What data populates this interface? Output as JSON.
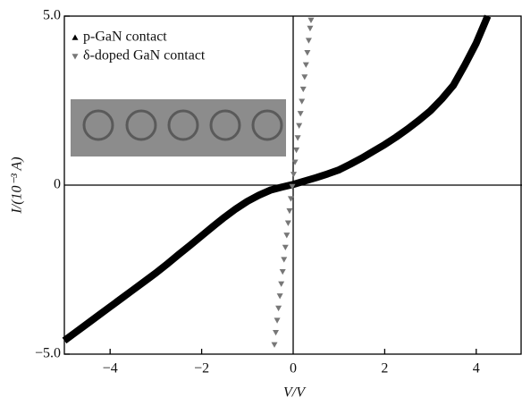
{
  "chart_data": {
    "type": "scatter",
    "xlabel": "V/V",
    "ylabel": "I/(10⁻³ A)",
    "xlim": [
      -5,
      5
    ],
    "ylim": [
      -5,
      5
    ],
    "xticks": [
      {
        "value": -4,
        "label": "−4"
      },
      {
        "value": -2,
        "label": "−2"
      },
      0,
      2,
      4
    ],
    "yticks": [
      {
        "value": -5,
        "label": "−5.0"
      },
      0,
      {
        "value": 5,
        "label": "5.0"
      }
    ],
    "legend": "upper left",
    "series": [
      {
        "name": "p-GaN contact",
        "color": "#000000",
        "marker": "triangle-up",
        "mode": "line",
        "x": [
          -5,
          -4.75,
          -4.5,
          -4.25,
          -4,
          -3.75,
          -3.5,
          -3.25,
          -3,
          -2.75,
          -2.5,
          -2.25,
          -2,
          -1.75,
          -1.5,
          -1.25,
          -1,
          -0.75,
          -0.5,
          -0.25,
          0,
          0.25,
          0.5,
          0.75,
          1,
          1.25,
          1.5,
          1.75,
          2,
          2.25,
          2.5,
          2.75,
          3,
          3.25,
          3.5,
          3.75,
          4,
          4.25
        ],
        "values": [
          -4.6,
          -4.35,
          -4.1,
          -3.85,
          -3.6,
          -3.35,
          -3.1,
          -2.85,
          -2.6,
          -2.33,
          -2.05,
          -1.78,
          -1.5,
          -1.22,
          -0.95,
          -0.7,
          -0.48,
          -0.3,
          -0.15,
          -0.06,
          0.02,
          0.12,
          0.22,
          0.33,
          0.45,
          0.62,
          0.8,
          1.0,
          1.2,
          1.42,
          1.66,
          1.92,
          2.2,
          2.55,
          2.95,
          3.55,
          4.2,
          5.0
        ]
      },
      {
        "name": "δ-doped GaN contact",
        "color": "#777777",
        "marker": "triangle-down",
        "mode": "markers",
        "x": [
          -0.41,
          -0.38,
          -0.35,
          -0.32,
          -0.29,
          -0.26,
          -0.23,
          -0.2,
          -0.17,
          -0.14,
          -0.11,
          -0.08,
          -0.05,
          -0.02,
          0.01,
          0.04,
          0.07,
          0.1,
          0.13,
          0.16,
          0.19,
          0.22,
          0.25,
          0.28,
          0.31,
          0.34,
          0.37,
          0.39
        ],
        "values": [
          -4.72,
          -4.36,
          -4.0,
          -3.64,
          -3.28,
          -2.92,
          -2.56,
          -2.2,
          -1.84,
          -1.48,
          -1.12,
          -0.76,
          -0.4,
          -0.04,
          0.32,
          0.68,
          1.04,
          1.4,
          1.76,
          2.12,
          2.48,
          2.84,
          3.2,
          3.56,
          3.92,
          4.28,
          4.64,
          4.88
        ]
      }
    ]
  }
}
